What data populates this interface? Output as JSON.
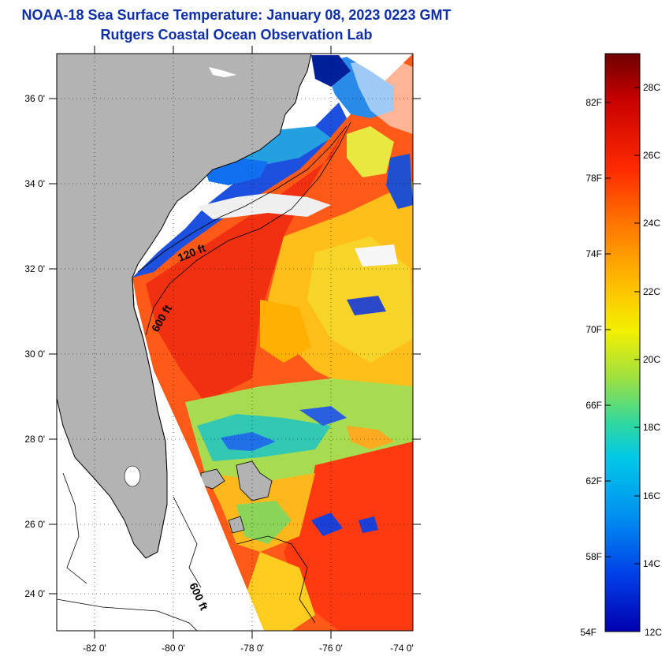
{
  "header": {
    "title": "NOAA-18 Sea Surface Temperature:  January 08, 2023 0223 GMT",
    "subtitle": "Rutgers Coastal Ocean Observation Lab"
  },
  "map": {
    "lat_ticks": [
      "36 0'",
      "34 0'",
      "32 0'",
      "30 0'",
      "28 0'",
      "26 0'",
      "24 0'"
    ],
    "lon_ticks": [
      "-82 0'",
      "-80 0'",
      "-78 0'",
      "-76 0'",
      "-74 0'"
    ],
    "contour_labels": [
      "120 ft",
      "600 ft",
      "600 ft"
    ],
    "land_color": "#b3b3b3"
  },
  "colorbar": {
    "fahrenheit_labels": [
      "82F",
      "78F",
      "74F",
      "70F",
      "66F",
      "62F",
      "58F",
      "54F"
    ],
    "celsius_labels": [
      "28C",
      "26C",
      "24C",
      "22C",
      "20C",
      "18C",
      "16C",
      "14C",
      "12C"
    ],
    "colors": [
      "#6e0000",
      "#c80000",
      "#ff2a00",
      "#ff7a00",
      "#ffbe00",
      "#f3f000",
      "#9fe040",
      "#2fd8a0",
      "#00c8e8",
      "#0090f0",
      "#0040e8",
      "#0000b0"
    ]
  }
}
